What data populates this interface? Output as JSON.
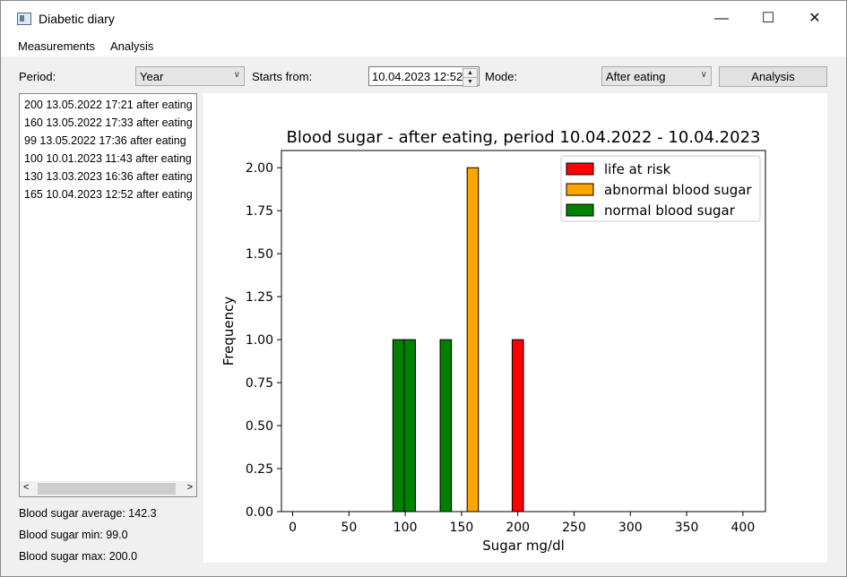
{
  "window": {
    "title": "Diabetic diary"
  },
  "menu": [
    "Measurements",
    "Analysis"
  ],
  "toolbar": {
    "period_label": "Period:",
    "period_value": "Year",
    "starts_label": "Starts from:",
    "starts_value": "10.04.2023 12:52",
    "mode_label": "Mode:",
    "mode_value": "After eating",
    "analysis_button": "Analysis"
  },
  "measurements": [
    "200 13.05.2022 17:21 after eating",
    "160 13.05.2022 17:33 after eating",
    "99 13.05.2022 17:36 after eating",
    "100 10.01.2023 11:43 after eating",
    "130 13.03.2023 16:36 after eating",
    "165 10.04.2023 12:52 after eating"
  ],
  "stats": {
    "average": "Blood sugar average: 142.3",
    "min": "Blood sugar min: 99.0",
    "max": "Blood sugar max: 200.0"
  },
  "chart_data": {
    "type": "bar",
    "title": "Blood sugar -  after eating, period 10.04.2022 - 10.04.2023",
    "xlabel": "Sugar mg/dl",
    "ylabel": "Frequency",
    "xlim": [
      -10,
      420
    ],
    "ylim": [
      0,
      2.1
    ],
    "xticks": [
      0,
      50,
      100,
      150,
      200,
      250,
      300,
      350,
      400
    ],
    "yticks": [
      "0.00",
      "0.25",
      "0.50",
      "0.75",
      "1.00",
      "1.25",
      "1.50",
      "1.75",
      "2.00"
    ],
    "bar_width": 10,
    "legend_position": "top-right",
    "series": [
      {
        "name": "life at risk",
        "color": "#ff0000",
        "bars": [
          {
            "x": 200,
            "value": 1
          }
        ]
      },
      {
        "name": "abnormal blood sugar",
        "color": "#ffa500",
        "bars": [
          {
            "x": 160,
            "value": 2
          }
        ]
      },
      {
        "name": "normal blood sugar",
        "color": "#008000",
        "bars": [
          {
            "x": 94,
            "value": 1
          },
          {
            "x": 104,
            "value": 1
          },
          {
            "x": 136,
            "value": 1
          }
        ]
      }
    ]
  }
}
